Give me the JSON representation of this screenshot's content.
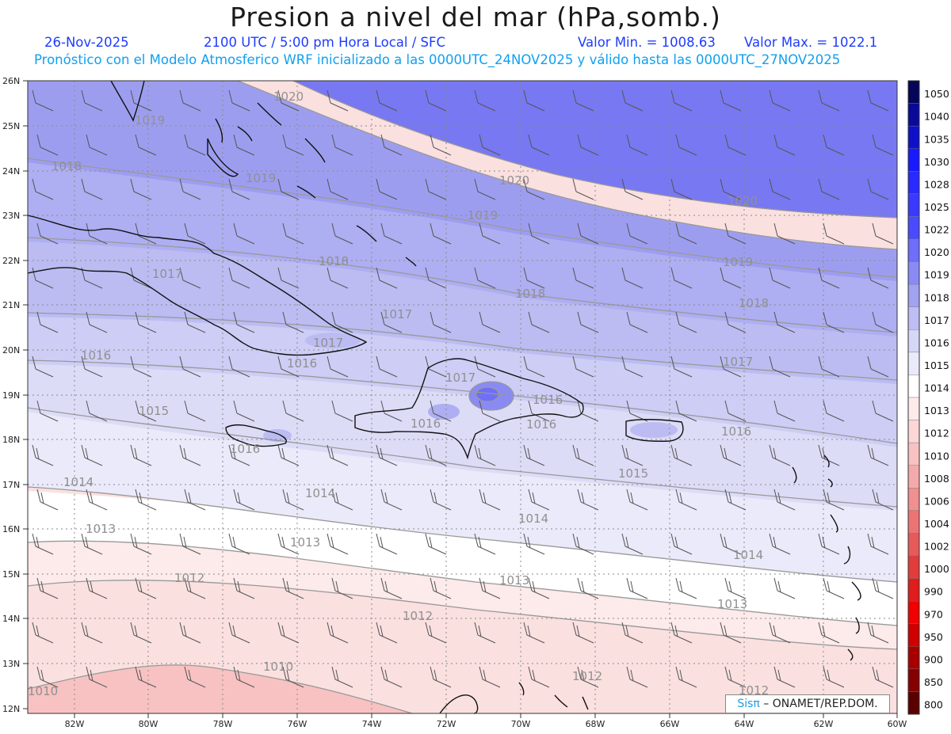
{
  "header": {
    "title": "Presion a nivel del mar (hPa,somb.)",
    "date": "26-Nov-2025",
    "time": "2100 UTC / 5:00 pm Hora Local / SFC",
    "min_label": "Valor Min. = 1008.63",
    "max_label": "Valor Max. = 1022.1",
    "model_line": "Pronóstico con el Modelo Atmosferico WRF inicializado a las 0000UTC_24NOV2025 y válido hasta las  0000UTC_27NOV2025"
  },
  "axes": {
    "lat_labels": [
      "26N",
      "25N",
      "24N",
      "23N",
      "22N",
      "21N",
      "20N",
      "19N",
      "18N",
      "17N",
      "16N",
      "15N",
      "14N",
      "13N",
      "12N"
    ],
    "lon_labels": [
      "82W",
      "80W",
      "78W",
      "76W",
      "74W",
      "72W",
      "70W",
      "68W",
      "66W",
      "64W",
      "62W",
      "60W"
    ]
  },
  "colorbar": {
    "labels": [
      "1050",
      "1040",
      "1035",
      "1030",
      "1028",
      "1025",
      "1022",
      "1020",
      "1019",
      "1018",
      "1017",
      "1016",
      "1015",
      "1014",
      "1013",
      "1012",
      "1010",
      "1008",
      "1006",
      "1004",
      "1002",
      "1000",
      "990",
      "970",
      "950",
      "900",
      "850",
      "800"
    ],
    "colors": [
      "#05055a",
      "#0a0a9a",
      "#1010c8",
      "#1a1aff",
      "#2a2aff",
      "#3a3aff",
      "#4a4aff",
      "#6e6efa",
      "#8a8af5",
      "#a2a2f2",
      "#bebef4",
      "#d6d6f7",
      "#eaeafa",
      "#ffffff",
      "#fdeaea",
      "#fbd7d7",
      "#f8c2c2",
      "#f4aaaa",
      "#f09090",
      "#ec7474",
      "#e65a5a",
      "#e23c3c",
      "#e01c1c",
      "#f00000",
      "#d00000",
      "#a80000",
      "#850000",
      "#5a0000"
    ]
  },
  "isobar_labels": [
    {
      "text": "1020"
    },
    {
      "text": "1019"
    },
    {
      "text": "1018"
    },
    {
      "text": "1019"
    },
    {
      "text": "1020"
    },
    {
      "text": "1019"
    },
    {
      "text": "1020"
    },
    {
      "text": "1018"
    },
    {
      "text": "1017"
    },
    {
      "text": "1018"
    },
    {
      "text": "1019"
    },
    {
      "text": "1017"
    },
    {
      "text": "1017"
    },
    {
      "text": "1018"
    },
    {
      "text": "1016"
    },
    {
      "text": "1016"
    },
    {
      "text": "1017"
    },
    {
      "text": "1016"
    },
    {
      "text": "1017"
    },
    {
      "text": "1015"
    },
    {
      "text": "1016"
    },
    {
      "text": "1016"
    },
    {
      "text": "1016"
    },
    {
      "text": "1016"
    },
    {
      "text": "1014"
    },
    {
      "text": "1014"
    },
    {
      "text": "1015"
    },
    {
      "text": "1014"
    },
    {
      "text": "1013"
    },
    {
      "text": "1013"
    },
    {
      "text": "1014"
    },
    {
      "text": "1012"
    },
    {
      "text": "1013"
    },
    {
      "text": "1013"
    },
    {
      "text": "1012"
    },
    {
      "text": "1010"
    },
    {
      "text": "1012"
    },
    {
      "text": "1010"
    },
    {
      "text": "1012"
    }
  ],
  "credit": {
    "logo": "Sisπ",
    "text": " – ONAMET/REP.DOM."
  },
  "legend_icons": [
    "wind-barb-icon"
  ]
}
